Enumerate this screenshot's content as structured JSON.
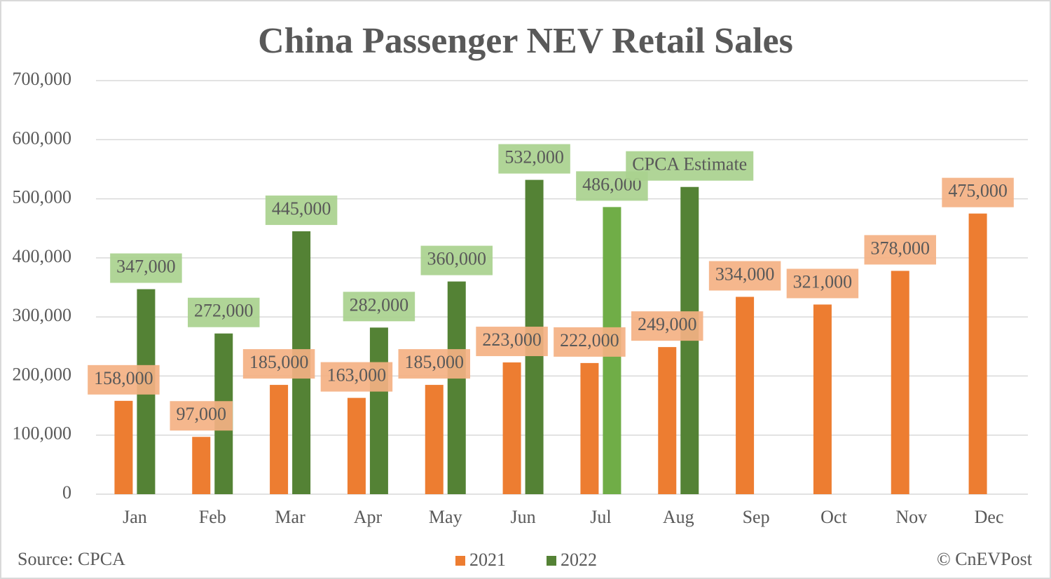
{
  "chart_data": {
    "type": "bar",
    "title": "China Passenger NEV Retail Sales",
    "categories": [
      "Jan",
      "Feb",
      "Mar",
      "Apr",
      "May",
      "Jun",
      "Jul",
      "Aug",
      "Sep",
      "Oct",
      "Nov",
      "Dec"
    ],
    "series": [
      {
        "name": "2021",
        "color": "#ed7d31",
        "label_color": "#f4b183",
        "values": [
          158000,
          97000,
          185000,
          163000,
          185000,
          223000,
          222000,
          249000,
          334000,
          321000,
          378000,
          475000
        ],
        "value_labels": [
          "158,000",
          "97,000",
          "185,000",
          "163,000",
          "185,000",
          "223,000",
          "222,000",
          "249,000",
          "334,000",
          "321,000",
          "378,000",
          "475,000"
        ]
      },
      {
        "name": "2022",
        "color": "#548235",
        "label_color": "#a9d18e",
        "point_colors": [
          "#548235",
          "#548235",
          "#548235",
          "#548235",
          "#548235",
          "#548235",
          "#70ad47",
          "#548235",
          null,
          null,
          null,
          null
        ],
        "values": [
          347000,
          272000,
          445000,
          282000,
          360000,
          532000,
          486000,
          520000,
          null,
          null,
          null,
          null
        ],
        "value_labels": [
          "347,000",
          "272,000",
          "445,000",
          "282,000",
          "360,000",
          "532,000",
          "486,000",
          null,
          null,
          null,
          null,
          null
        ]
      }
    ],
    "annotation": "CPCA Estimate",
    "ylim": [
      0,
      700000
    ],
    "yticks": [
      0,
      {
        "value": 100000,
        "label": "100,000"
      },
      {
        "value": 200000,
        "label": "200,000"
      },
      {
        "value": 300000,
        "label": "300,000"
      },
      {
        "value": 400000,
        "label": "400,000"
      },
      {
        "value": 500000,
        "label": "500,000"
      },
      {
        "value": 600000,
        "label": "600,000"
      },
      {
        "value": 700000,
        "label": "700,000"
      }
    ],
    "grid": true,
    "legend": "bottom",
    "source": "Source: CPCA",
    "credit": "© CnEVPost"
  }
}
